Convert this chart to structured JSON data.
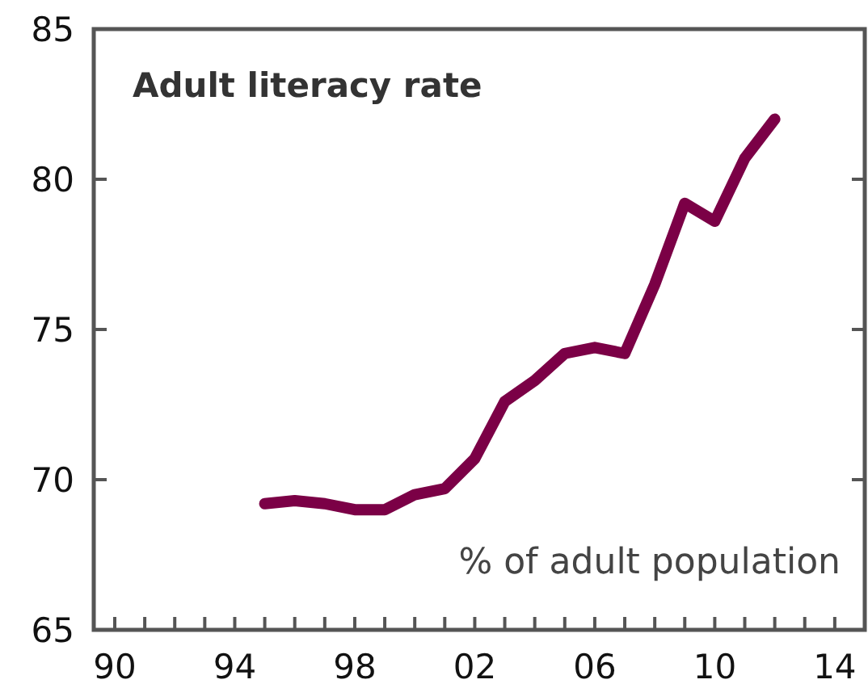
{
  "chart_data": {
    "type": "line",
    "title": "Adult literacy rate",
    "annotations": [
      "% of adult population"
    ],
    "x": [
      1995,
      1996,
      1997,
      1998,
      1999,
      2000,
      2001,
      2002,
      2003,
      2004,
      2005,
      2006,
      2007,
      2008,
      2009,
      2010,
      2011,
      2012
    ],
    "series": [
      {
        "color": "#7b0046",
        "values": [
          69.2,
          69.3,
          69.2,
          69.0,
          69.0,
          69.5,
          69.7,
          70.7,
          72.6,
          73.3,
          74.2,
          74.4,
          74.2,
          76.5,
          79.2,
          78.6,
          80.7,
          82.0
        ]
      }
    ],
    "xlim": [
      1989.3,
      2015
    ],
    "xticks": [
      {
        "value": 1990,
        "label": "90"
      },
      {
        "value": 1991,
        "label": null
      },
      {
        "value": 1992,
        "label": null
      },
      {
        "value": 1993,
        "label": null
      },
      {
        "value": 1994,
        "label": "94"
      },
      {
        "value": 1995,
        "label": null
      },
      {
        "value": 1996,
        "label": null
      },
      {
        "value": 1997,
        "label": null
      },
      {
        "value": 1998,
        "label": "98"
      },
      {
        "value": 1999,
        "label": null
      },
      {
        "value": 2000,
        "label": null
      },
      {
        "value": 2001,
        "label": null
      },
      {
        "value": 2002,
        "label": "02"
      },
      {
        "value": 2003,
        "label": null
      },
      {
        "value": 2004,
        "label": null
      },
      {
        "value": 2005,
        "label": null
      },
      {
        "value": 2006,
        "label": "06"
      },
      {
        "value": 2007,
        "label": null
      },
      {
        "value": 2008,
        "label": null
      },
      {
        "value": 2009,
        "label": null
      },
      {
        "value": 2010,
        "label": "10"
      },
      {
        "value": 2011,
        "label": null
      },
      {
        "value": 2012,
        "label": null
      },
      {
        "value": 2013,
        "label": null
      },
      {
        "value": 2014,
        "label": "14"
      }
    ],
    "ylim": [
      65,
      85
    ],
    "yticks": [
      65,
      70,
      75,
      80,
      85
    ],
    "grid": false,
    "marker": "none",
    "line_style": "solid"
  }
}
